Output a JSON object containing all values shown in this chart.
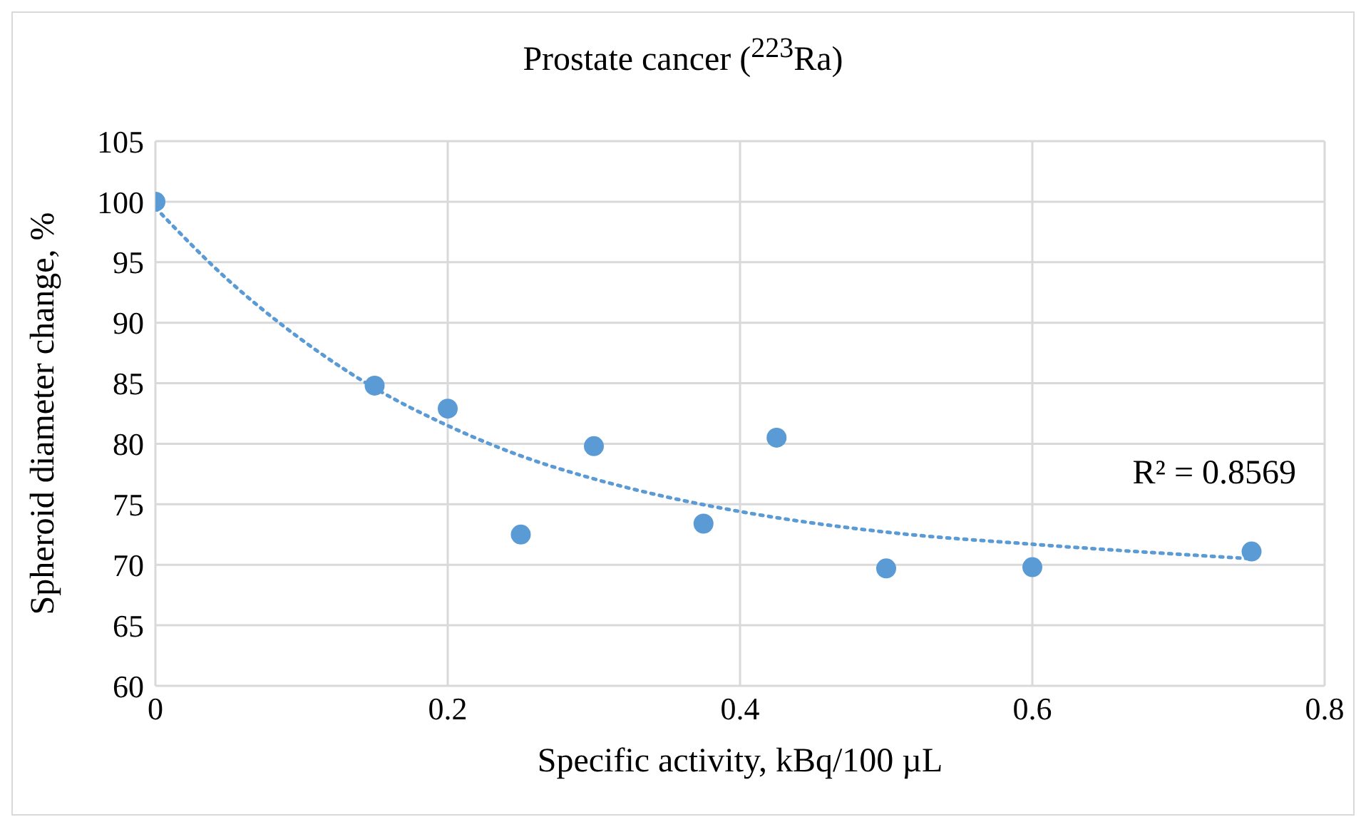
{
  "chart_data": {
    "type": "scatter",
    "title": "Prostate cancer ($^{223}$Ra)",
    "xlabel": "Specific activity, kBq/100 µL",
    "ylabel": "Spheroid diameter change, %",
    "x": [
      0,
      0.15,
      0.2,
      0.25,
      0.3,
      0.375,
      0.425,
      0.5,
      0.6,
      0.75
    ],
    "series": [
      {
        "color": "#5b9bd5",
        "marker": "circle",
        "values": [
          100,
          84.8,
          82.9,
          72.5,
          79.8,
          73.4,
          80.5,
          69.7,
          69.8,
          71.1
        ]
      },
      {
        "type": "line",
        "color": "#5b9bd5",
        "marker": "none",
        "line_style": "dotted",
        "x": [
          0,
          0.05,
          0.1,
          0.15,
          0.2,
          0.25,
          0.3,
          0.35,
          0.4,
          0.5,
          0.6,
          0.75
        ],
        "values": [
          99.5,
          93.5,
          88.6,
          84.6,
          81.5,
          79,
          77.1,
          75.6,
          74.4,
          72.7,
          71.7,
          70.5
        ]
      }
    ],
    "annotations": [
      "R² = 0.8569"
    ],
    "xlim": [
      0,
      0.8
    ],
    "xticks": [
      0,
      0.2,
      0.4,
      0.6,
      0.8
    ],
    "ylim": [
      60,
      105
    ],
    "yticks": [
      60,
      65,
      70,
      75,
      80,
      85,
      90,
      95,
      100,
      105
    ],
    "grid": true
  }
}
